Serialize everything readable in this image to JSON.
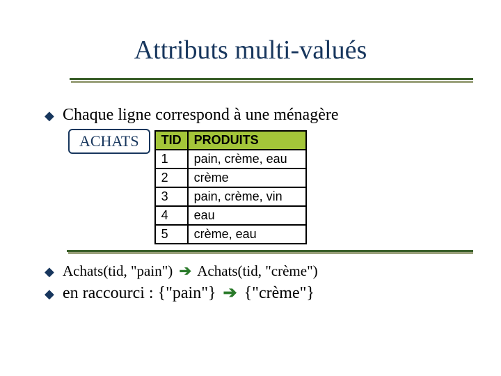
{
  "colors": {
    "title": "#17365d",
    "bullet": "#17365d",
    "rule_main": "#3a5f2a",
    "rule_shadow": "#9aa07a",
    "pill_border": "#17365d",
    "table_header_bg": "#a4c639",
    "arrow": "#2a7a2a"
  },
  "title": "Attributs multi-valués",
  "bullets": {
    "b1": "Chaque ligne correspond à une ménagère",
    "b2_left": "Achats(tid, \"pain\")",
    "b2_right": "Achats(tid, \"crème\")",
    "b3_left": "en raccourci : {\"pain\"}",
    "b3_right": "{\"crème\"}"
  },
  "achats_label": "ACHATS",
  "table": {
    "headers": {
      "tid": "TID",
      "prod": "PRODUITS"
    },
    "rows": [
      {
        "tid": "1",
        "prod": "pain, crème, eau"
      },
      {
        "tid": "2",
        "prod": "crème"
      },
      {
        "tid": "3",
        "prod": "pain, crème, vin"
      },
      {
        "tid": "4",
        "prod": "eau"
      },
      {
        "tid": "5",
        "prod": "crème, eau"
      }
    ]
  }
}
